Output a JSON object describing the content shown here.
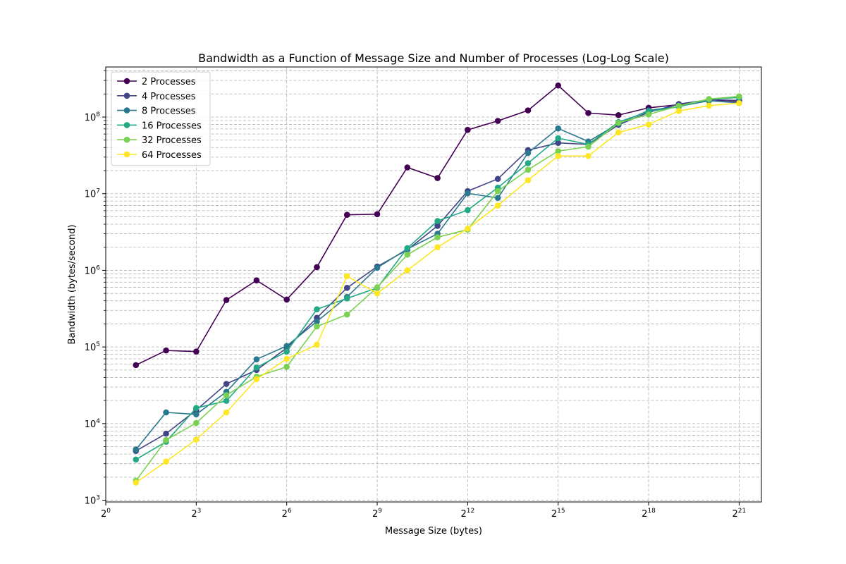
{
  "chart_data": {
    "type": "line",
    "title": "Bandwidth as a Function of Message Size and Number of Processes (Log-Log Scale)",
    "xlabel": "Message Size (bytes)",
    "ylabel": "Bandwidth (bytes/second)",
    "xscale": "log2",
    "yscale": "log10",
    "xlim": [
      1,
      3500000
    ],
    "ylim": [
      950,
      450000000
    ],
    "x_ticks": [
      {
        "value": 1,
        "base": "2",
        "exp": "0"
      },
      {
        "value": 8,
        "base": "2",
        "exp": "3"
      },
      {
        "value": 64,
        "base": "2",
        "exp": "6"
      },
      {
        "value": 512,
        "base": "2",
        "exp": "9"
      },
      {
        "value": 4096,
        "base": "2",
        "exp": "12"
      },
      {
        "value": 32768,
        "base": "2",
        "exp": "15"
      },
      {
        "value": 262144,
        "base": "2",
        "exp": "18"
      },
      {
        "value": 2097152,
        "base": "2",
        "exp": "21"
      }
    ],
    "y_ticks": [
      {
        "value": 1000,
        "base": "10",
        "exp": "3"
      },
      {
        "value": 10000,
        "base": "10",
        "exp": "4"
      },
      {
        "value": 100000,
        "base": "10",
        "exp": "5"
      },
      {
        "value": 1000000,
        "base": "10",
        "exp": "6"
      },
      {
        "value": 10000000,
        "base": "10",
        "exp": "7"
      },
      {
        "value": 100000000,
        "base": "10",
        "exp": "8"
      }
    ],
    "grid": true,
    "legend": "top-left",
    "x": [
      2,
      4,
      8,
      16,
      32,
      64,
      128,
      256,
      512,
      1024,
      2048,
      4096,
      8192,
      16384,
      32768,
      65536,
      131072,
      262144,
      524288,
      1048576,
      2097152
    ],
    "series": [
      {
        "name": "2 Processes",
        "color": "#440154",
        "values": [
          58000,
          90000,
          87000,
          410000,
          740000,
          415000,
          1100000,
          5300000,
          5400000,
          22000000,
          16000000,
          68000000,
          89000000,
          122000000,
          258000000,
          113000000,
          106000000,
          132000000,
          145000000,
          168000000,
          160000000
        ]
      },
      {
        "name": "4 Processes",
        "color": "#414487",
        "values": [
          4400,
          7400,
          15000,
          33000,
          50000,
          97000,
          240000,
          590000,
          1120000,
          1850000,
          3800000,
          10800000,
          15600000,
          37000000,
          46000000,
          44000000,
          79000000,
          115000000,
          148000000,
          168000000,
          165000000
        ]
      },
      {
        "name": "8 Processes",
        "color": "#2a788e",
        "values": [
          4600,
          14000,
          13200,
          26000,
          69000,
          103000,
          215000,
          450000,
          1080000,
          1900000,
          3000000,
          10100000,
          8800000,
          34000000,
          71000000,
          48000000,
          82000000,
          122000000,
          138000000,
          163000000,
          153000000
        ]
      },
      {
        "name": "16 Processes",
        "color": "#22a884",
        "values": [
          3400,
          5800,
          16000,
          19800,
          54000,
          87000,
          310000,
          430000,
          590000,
          1950000,
          4400000,
          6100000,
          12000000,
          25000000,
          53000000,
          44000000,
          86000000,
          118000000,
          136000000,
          170000000,
          180000000
        ]
      },
      {
        "name": "32 Processes",
        "color": "#7ad151",
        "values": [
          1800,
          6100,
          10200,
          23500,
          41000,
          55000,
          185000,
          265000,
          600000,
          1600000,
          2700000,
          3400000,
          10800000,
          20500000,
          36000000,
          41000000,
          84000000,
          108000000,
          140000000,
          172000000,
          186000000
        ]
      },
      {
        "name": "64 Processes",
        "color": "#fde725",
        "values": [
          1700,
          3200,
          6200,
          14000,
          38000,
          70000,
          107000,
          840000,
          500000,
          1000000,
          2000000,
          3500000,
          7000000,
          15000000,
          31000000,
          31000000,
          63000000,
          80000000,
          120000000,
          141000000,
          152000000
        ]
      }
    ]
  }
}
